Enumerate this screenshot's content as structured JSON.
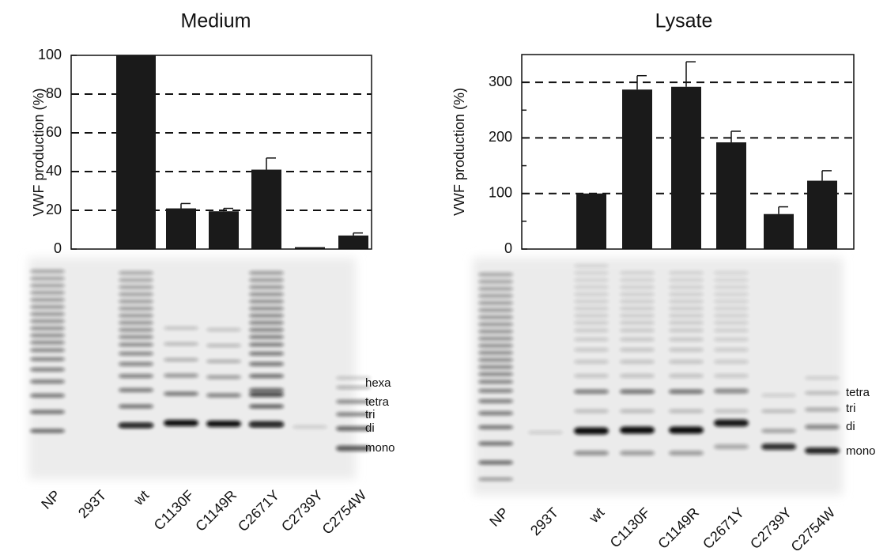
{
  "chart_data": [
    {
      "type": "bar",
      "title": "Medium",
      "y_label": "VWF production (%)",
      "categories": [
        "NP",
        "293T",
        "wt",
        "C1130F",
        "C1149R",
        "C2671Y",
        "C2739Y",
        "C2754W"
      ],
      "values": [
        null,
        0,
        100,
        21,
        19.5,
        41,
        1,
        7
      ],
      "errors": [
        null,
        null,
        null,
        2.5,
        1.5,
        6,
        null,
        1.3
      ],
      "ylim": [
        0,
        100
      ],
      "yticks": [
        0,
        20,
        40,
        60,
        80,
        100
      ],
      "grid": true,
      "color": "#1a1a1a",
      "band_labels": [
        "hexa",
        "tetra",
        "tri",
        "di",
        "mono"
      ]
    },
    {
      "type": "bar",
      "title": "Lysate",
      "y_label": "VWF production (%)",
      "categories": [
        "NP",
        "293T",
        "wt",
        "C1130F",
        "C1149R",
        "C2671Y",
        "C2739Y",
        "C2754W"
      ],
      "values": [
        null,
        0,
        100,
        287,
        292,
        192,
        63,
        123
      ],
      "errors": [
        null,
        null,
        null,
        25,
        45,
        20,
        13,
        18
      ],
      "ylim": [
        0,
        350
      ],
      "yticks": [
        0,
        100,
        200,
        300
      ],
      "grid": true,
      "color": "#1a1a1a",
      "band_labels": [
        "tetra",
        "tri",
        "di",
        "mono"
      ]
    }
  ]
}
